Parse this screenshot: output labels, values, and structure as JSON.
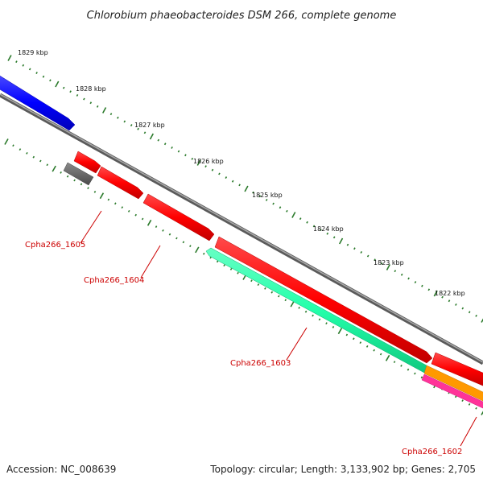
{
  "title": "Chlorobium phaeobacteroides DSM 266, complete genome",
  "footer": {
    "accession": "Accession: NC_008639",
    "summary": "Topology: circular; Length: 3,133,902 bp; Genes: 2,705"
  },
  "ruler": {
    "labels": [
      "1829 kbp",
      "1828 kbp",
      "1827 kbp",
      "1826 kbp",
      "1825 kbp",
      "1824 kbp",
      "1823 kbp",
      "1822 kbp"
    ]
  },
  "genes": [
    {
      "name": "Cpha266_1605",
      "color": "#ff0000",
      "strand": "+"
    },
    {
      "name": "Cpha266_1604",
      "color": "#ff0000",
      "strand": "+"
    },
    {
      "name": "Cpha266_1603",
      "color": "#22ffaa",
      "strand": "-"
    },
    {
      "name": "Cpha266_1602",
      "color": "#ff0000",
      "strand": "+"
    }
  ],
  "colors": {
    "backbone": "#7a7a7a",
    "forward_gene": "#ff0000",
    "reverse_gene": "#22ffaa",
    "upstream_gene": "#0000ff",
    "pseudo_gene": "#666666",
    "orange_gene": "#ff9900",
    "magenta_gene": "#ff3399",
    "tick": "#2b7a2b",
    "label": "#cc0000"
  }
}
